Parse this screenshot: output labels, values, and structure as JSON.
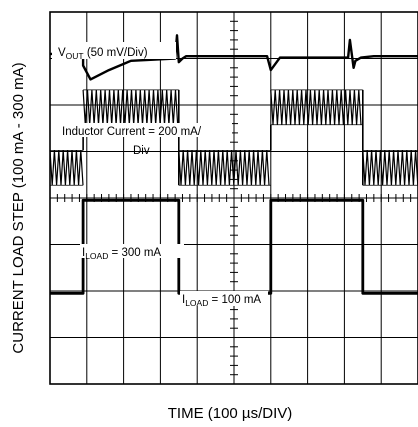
{
  "chart_data": {
    "type": "line",
    "title": "",
    "xlabel": "TIME (100 µs/DIV)",
    "ylabel": "CURRENT LOAD STEP (100 mA - 300 mA)",
    "grid": true,
    "x_divisions": 10,
    "y_divisions": 8,
    "xlim": [
      0,
      10
    ],
    "ylim": [
      0,
      8
    ],
    "annotations": {
      "vout": {
        "prefix": "V",
        "sub": "OUT",
        "suffix": " (50 mV/Div)"
      },
      "inductor": {
        "line1": "Inductor Current = 200 mA/",
        "line2": "Div"
      },
      "iload_high": {
        "prefix": "I",
        "sub": "LOAD",
        "suffix": " = 300 mA"
      },
      "iload_low": {
        "prefix": "I",
        "sub": "LOAD",
        "suffix": " = 100 mA"
      }
    },
    "series": [
      {
        "name": "VOUT",
        "x": [
          0,
          0.9,
          0.9,
          1.1,
          1.6,
          2.2,
          3.4,
          3.45,
          3.5,
          3.6,
          3.7,
          4.0,
          5.9,
          6.0,
          6.25,
          8.1,
          8.15,
          8.25,
          8.3,
          8.45,
          8.8,
          10
        ],
        "y": [
          7.1,
          7.1,
          6.85,
          6.55,
          6.75,
          6.95,
          7.0,
          7.5,
          6.92,
          7.0,
          7.05,
          7.05,
          7.05,
          6.75,
          7.02,
          7.02,
          7.4,
          6.8,
          6.95,
          7.02,
          7.05,
          7.05
        ]
      },
      {
        "name": "Inductor Current",
        "segments": [
          {
            "x0": 0.0,
            "x1": 0.9,
            "center": 4.65,
            "ripple": 0.75
          },
          {
            "x0": 0.9,
            "x1": 3.5,
            "center": 5.95,
            "ripple": 0.75
          },
          {
            "x0": 3.5,
            "x1": 6.0,
            "center": 4.65,
            "ripple": 0.75
          },
          {
            "x0": 6.0,
            "x1": 8.5,
            "center": 5.95,
            "ripple": 0.75
          },
          {
            "x0": 8.5,
            "x1": 10.0,
            "center": 4.65,
            "ripple": 0.75
          }
        ]
      },
      {
        "name": "ILOAD",
        "x": [
          0,
          0.9,
          0.9,
          3.5,
          3.5,
          6.0,
          6.0,
          8.5,
          8.5,
          10
        ],
        "y": [
          1.95,
          1.95,
          3.95,
          3.95,
          1.95,
          1.95,
          3.95,
          3.95,
          1.95,
          1.95
        ]
      }
    ]
  }
}
